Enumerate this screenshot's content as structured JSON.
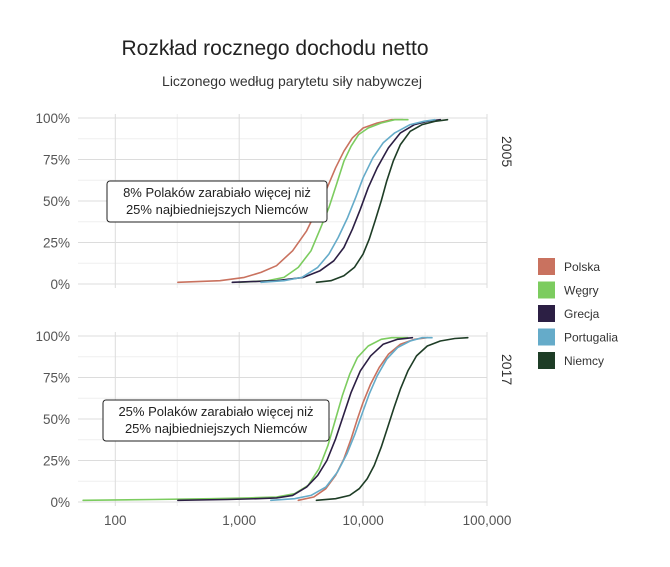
{
  "chart_data": {
    "type": "line",
    "title": "Rozkład rocznego dochodu netto",
    "subtitle": "Liczonego według parytetu siły nabywczej",
    "x_scale": "log",
    "xlim": [
      50,
      100000
    ],
    "ylim": [
      0,
      1
    ],
    "x_ticks": [
      100,
      1000,
      10000,
      100000
    ],
    "x_tick_labels": [
      "100",
      "1,000",
      "10,000",
      "100,000"
    ],
    "y_ticks": [
      0,
      0.25,
      0.5,
      0.75,
      1
    ],
    "y_tick_labels": [
      "0%",
      "25%",
      "50%",
      "75%",
      "100%"
    ],
    "grid": true,
    "legend_position": "right",
    "legend": [
      {
        "name": "Polska",
        "color": "#c9725f"
      },
      {
        "name": "Węgry",
        "color": "#7ccc5f"
      },
      {
        "name": "Grecja",
        "color": "#2c1f44"
      },
      {
        "name": "Portugalia",
        "color": "#65abc9"
      },
      {
        "name": "Niemcy",
        "color": "#1e3d26"
      }
    ],
    "panels": [
      {
        "label": "2005",
        "annotation": [
          "8% Polaków zarabiało więcej niż",
          "25% najbiedniejszych Niemców"
        ],
        "series": [
          {
            "name": "Polska",
            "points": [
              [
                320,
                0.01
              ],
              [
                700,
                0.02
              ],
              [
                1100,
                0.04
              ],
              [
                1500,
                0.07
              ],
              [
                2000,
                0.11
              ],
              [
                2700,
                0.2
              ],
              [
                3500,
                0.32
              ],
              [
                4200,
                0.44
              ],
              [
                5000,
                0.56
              ],
              [
                6000,
                0.7
              ],
              [
                7000,
                0.8
              ],
              [
                8200,
                0.88
              ],
              [
                10000,
                0.94
              ],
              [
                13000,
                0.97
              ],
              [
                17000,
                0.99
              ],
              [
                21000,
                0.99
              ]
            ]
          },
          {
            "name": "Węgry",
            "points": [
              [
                1000,
                0.01
              ],
              [
                1700,
                0.02
              ],
              [
                2300,
                0.04
              ],
              [
                3000,
                0.1
              ],
              [
                3800,
                0.2
              ],
              [
                4500,
                0.33
              ],
              [
                5300,
                0.46
              ],
              [
                6100,
                0.6
              ],
              [
                7000,
                0.74
              ],
              [
                8000,
                0.83
              ],
              [
                9200,
                0.9
              ],
              [
                11000,
                0.94
              ],
              [
                14000,
                0.97
              ],
              [
                18000,
                0.99
              ],
              [
                23000,
                0.99
              ]
            ]
          },
          {
            "name": "Grecja",
            "points": [
              [
                880,
                0.01
              ],
              [
                2000,
                0.02
              ],
              [
                3300,
                0.04
              ],
              [
                4500,
                0.08
              ],
              [
                5800,
                0.14
              ],
              [
                7000,
                0.22
              ],
              [
                8200,
                0.33
              ],
              [
                9500,
                0.45
              ],
              [
                11000,
                0.58
              ],
              [
                13000,
                0.7
              ],
              [
                16000,
                0.82
              ],
              [
                20000,
                0.91
              ],
              [
                26000,
                0.96
              ],
              [
                33000,
                0.98
              ],
              [
                42000,
                0.99
              ]
            ]
          },
          {
            "name": "Portugalia",
            "points": [
              [
                1500,
                0.01
              ],
              [
                2300,
                0.02
              ],
              [
                3200,
                0.04
              ],
              [
                4300,
                0.1
              ],
              [
                5300,
                0.18
              ],
              [
                6300,
                0.28
              ],
              [
                7500,
                0.4
              ],
              [
                8700,
                0.52
              ],
              [
                10000,
                0.64
              ],
              [
                12000,
                0.76
              ],
              [
                14500,
                0.85
              ],
              [
                18000,
                0.91
              ],
              [
                24000,
                0.96
              ],
              [
                31000,
                0.98
              ],
              [
                38000,
                0.99
              ]
            ]
          },
          {
            "name": "Niemcy",
            "points": [
              [
                4200,
                0.01
              ],
              [
                5500,
                0.02
              ],
              [
                7000,
                0.05
              ],
              [
                8500,
                0.1
              ],
              [
                10000,
                0.18
              ],
              [
                11200,
                0.27
              ],
              [
                12500,
                0.38
              ],
              [
                14000,
                0.5
              ],
              [
                15500,
                0.62
              ],
              [
                17500,
                0.74
              ],
              [
                20000,
                0.84
              ],
              [
                24000,
                0.92
              ],
              [
                30000,
                0.96
              ],
              [
                38000,
                0.98
              ],
              [
                48000,
                0.99
              ]
            ]
          }
        ]
      },
      {
        "label": "2017",
        "annotation": [
          "25% Polaków zarabiało więcej niż",
          "25% najbiedniejszych Niemców"
        ],
        "series": [
          {
            "name": "Węgry",
            "points": [
              [
                55,
                0.01
              ],
              [
                200,
                0.015
              ],
              [
                600,
                0.02
              ],
              [
                1200,
                0.025
              ],
              [
                2000,
                0.03
              ],
              [
                2800,
                0.05
              ],
              [
                3600,
                0.1
              ],
              [
                4400,
                0.2
              ],
              [
                5200,
                0.34
              ],
              [
                6000,
                0.5
              ],
              [
                6800,
                0.64
              ],
              [
                7800,
                0.77
              ],
              [
                9000,
                0.87
              ],
              [
                11000,
                0.94
              ],
              [
                14000,
                0.98
              ],
              [
                17000,
                0.99
              ],
              [
                23000,
                0.99
              ]
            ]
          },
          {
            "name": "Grecja",
            "points": [
              [
                320,
                0.01
              ],
              [
                800,
                0.015
              ],
              [
                1400,
                0.02
              ],
              [
                2000,
                0.025
              ],
              [
                2700,
                0.04
              ],
              [
                3500,
                0.09
              ],
              [
                4300,
                0.16
              ],
              [
                5100,
                0.25
              ],
              [
                6000,
                0.38
              ],
              [
                7000,
                0.53
              ],
              [
                8000,
                0.66
              ],
              [
                9500,
                0.79
              ],
              [
                11500,
                0.88
              ],
              [
                14500,
                0.95
              ],
              [
                19000,
                0.98
              ],
              [
                25000,
                0.99
              ]
            ]
          },
          {
            "name": "Polska",
            "points": [
              [
                3000,
                0.01
              ],
              [
                4000,
                0.03
              ],
              [
                5000,
                0.08
              ],
              [
                6000,
                0.16
              ],
              [
                7000,
                0.26
              ],
              [
                8000,
                0.38
              ],
              [
                9000,
                0.5
              ],
              [
                10000,
                0.6
              ],
              [
                11500,
                0.71
              ],
              [
                13500,
                0.81
              ],
              [
                16000,
                0.89
              ],
              [
                20000,
                0.95
              ],
              [
                26000,
                0.98
              ],
              [
                33000,
                0.99
              ]
            ]
          },
          {
            "name": "Portugalia",
            "points": [
              [
                1800,
                0.01
              ],
              [
                2800,
                0.02
              ],
              [
                3800,
                0.04
              ],
              [
                5000,
                0.09
              ],
              [
                6200,
                0.18
              ],
              [
                7400,
                0.29
              ],
              [
                8600,
                0.41
              ],
              [
                9800,
                0.53
              ],
              [
                11200,
                0.65
              ],
              [
                13000,
                0.76
              ],
              [
                15500,
                0.86
              ],
              [
                19000,
                0.93
              ],
              [
                24000,
                0.97
              ],
              [
                30000,
                0.99
              ],
              [
                36000,
                0.99
              ]
            ]
          },
          {
            "name": "Niemcy",
            "points": [
              [
                4200,
                0.01
              ],
              [
                6000,
                0.02
              ],
              [
                7800,
                0.04
              ],
              [
                9300,
                0.08
              ],
              [
                10800,
                0.14
              ],
              [
                12300,
                0.22
              ],
              [
                14000,
                0.33
              ],
              [
                15800,
                0.45
              ],
              [
                17800,
                0.57
              ],
              [
                20000,
                0.68
              ],
              [
                23000,
                0.79
              ],
              [
                27000,
                0.88
              ],
              [
                33000,
                0.94
              ],
              [
                42000,
                0.97
              ],
              [
                55000,
                0.985
              ],
              [
                70000,
                0.99
              ]
            ]
          }
        ]
      }
    ]
  }
}
